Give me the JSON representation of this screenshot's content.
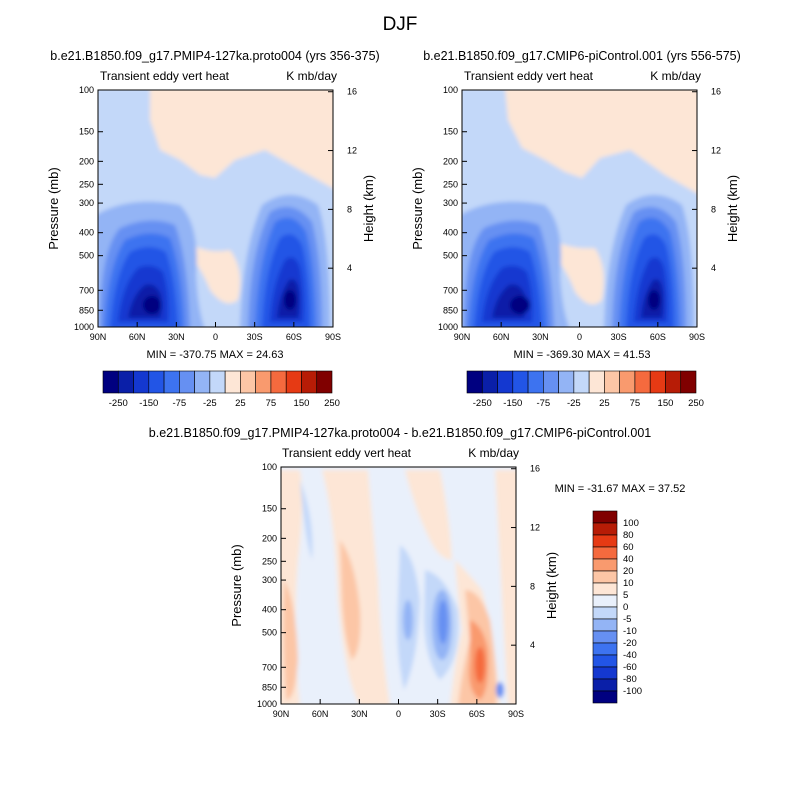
{
  "figure_title": "DJF",
  "colors": {
    "contour_main": [
      "#000080",
      "#0a1fa8",
      "#1438d0",
      "#2255e6",
      "#3d73f0",
      "#6690f2",
      "#93b4f5",
      "#c3d8f9",
      "#fde6d6",
      "#fcc6a6",
      "#f99a6e",
      "#f56a3e",
      "#e63a14",
      "#b71c06",
      "#800000"
    ],
    "contour_diff": [
      "#000080",
      "#0a1fa8",
      "#1438d0",
      "#2255e6",
      "#3d73f0",
      "#6690f2",
      "#93b4f5",
      "#c3d8f9",
      "#e9f0fb",
      "#fde6d6",
      "#fcc6a6",
      "#f99a6e",
      "#f56a3e",
      "#e63a14",
      "#b71c06",
      "#800000"
    ]
  },
  "chart_data": [
    {
      "type": "heatmap",
      "title": "b.e21.B1850.f09_g17.PMIP4-127ka.proto004 (yrs 356-375)",
      "left_label": "Transient eddy vert heat",
      "right_label": "K mb/day",
      "xlabel": "",
      "ylabel": "Pressure (mb)",
      "y2label": "Height (km)",
      "x_ticks": [
        "90N",
        "60N",
        "30N",
        "0",
        "30S",
        "60S",
        "90S"
      ],
      "y_ticks": [
        "100",
        "150",
        "200",
        "250",
        "300",
        "400",
        "500",
        "700",
        "850",
        "1000"
      ],
      "y2_ticks": [
        "16",
        "12",
        "8",
        "4"
      ],
      "stats": "MIN = -370.75   MAX =  24.63",
      "min": -370.75,
      "max": 24.63,
      "colorbar_labels": [
        "-250",
        "-150",
        "-75",
        "-25",
        "25",
        "75",
        "150",
        "250"
      ]
    },
    {
      "type": "heatmap",
      "title": "b.e21.B1850.f09_g17.CMIP6-piControl.001 (yrs 556-575)",
      "left_label": "Transient eddy vert heat",
      "right_label": "K mb/day",
      "xlabel": "",
      "ylabel": "Pressure (mb)",
      "y2label": "Height (km)",
      "x_ticks": [
        "90N",
        "60N",
        "30N",
        "0",
        "30S",
        "60S",
        "90S"
      ],
      "y_ticks": [
        "100",
        "150",
        "200",
        "250",
        "300",
        "400",
        "500",
        "700",
        "850",
        "1000"
      ],
      "y2_ticks": [
        "16",
        "12",
        "8",
        "4"
      ],
      "stats": "MIN = -369.30   MAX =  41.53",
      "min": -369.3,
      "max": 41.53,
      "colorbar_labels": [
        "-250",
        "-150",
        "-75",
        "-25",
        "25",
        "75",
        "150",
        "250"
      ]
    },
    {
      "type": "heatmap",
      "title": "b.e21.B1850.f09_g17.PMIP4-127ka.proto004 - b.e21.B1850.f09_g17.CMIP6-piControl.001",
      "left_label": "Transient eddy vert heat",
      "right_label": "K mb/day",
      "xlabel": "",
      "ylabel": "Pressure (mb)",
      "y2label": "Height (km)",
      "x_ticks": [
        "90N",
        "60N",
        "30N",
        "0",
        "30S",
        "60S",
        "90S"
      ],
      "y_ticks": [
        "100",
        "150",
        "200",
        "250",
        "300",
        "400",
        "500",
        "700",
        "850",
        "1000"
      ],
      "y2_ticks": [
        "16",
        "12",
        "8",
        "4"
      ],
      "stats": "MIN = -31.67   MAX =  37.52",
      "min": -31.67,
      "max": 37.52,
      "colorbar_labels": [
        "100",
        "80",
        "60",
        "40",
        "20",
        "10",
        "5",
        "0",
        "-5",
        "-10",
        "-20",
        "-40",
        "-60",
        "-80",
        "-100"
      ]
    }
  ]
}
